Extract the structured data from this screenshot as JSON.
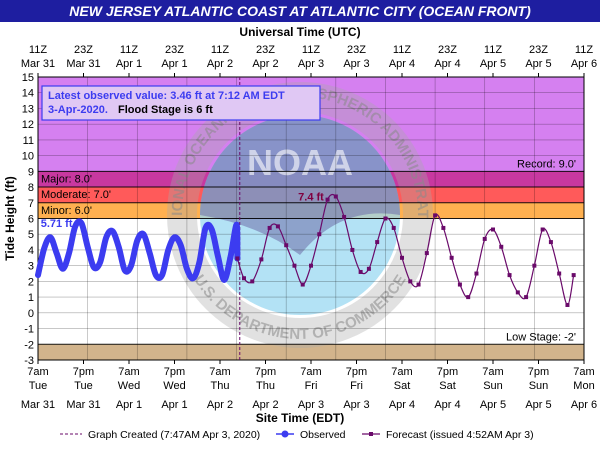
{
  "chart_data": {
    "type": "line",
    "title": "NEW JERSEY ATLANTIC COAST AT ATLANTIC CITY (OCEAN FRONT)",
    "top_axis_title": "Universal Time (UTC)",
    "bottom_axis_title": "Site Time (EDT)",
    "ylabel": "Tide Height (ft)",
    "ylim": [
      -3,
      15
    ],
    "x_range_hours": [
      0,
      132
    ],
    "top_ticks": [
      [
        "11Z",
        "Mar 31"
      ],
      [
        "23Z",
        "Mar 31"
      ],
      [
        "11Z",
        "Apr 1"
      ],
      [
        "23Z",
        "Apr 1"
      ],
      [
        "11Z",
        "Apr 2"
      ],
      [
        "23Z",
        "Apr 2"
      ],
      [
        "11Z",
        "Apr 3"
      ],
      [
        "23Z",
        "Apr 3"
      ],
      [
        "11Z",
        "Apr 4"
      ],
      [
        "23Z",
        "Apr 4"
      ],
      [
        "11Z",
        "Apr 5"
      ],
      [
        "23Z",
        "Apr 5"
      ],
      [
        "11Z",
        "Apr 6"
      ]
    ],
    "bottom_ticks": [
      [
        "7am",
        "Tue",
        "Mar 31"
      ],
      [
        "7pm",
        "Tue",
        "Mar 31"
      ],
      [
        "7am",
        "Wed",
        "Apr 1"
      ],
      [
        "7pm",
        "Wed",
        "Apr 1"
      ],
      [
        "7am",
        "Thu",
        "Apr 2"
      ],
      [
        "7pm",
        "Thu",
        "Apr 2"
      ],
      [
        "7am",
        "Fri",
        "Apr 3"
      ],
      [
        "7pm",
        "Fri",
        "Apr 3"
      ],
      [
        "7am",
        "Sat",
        "Apr 4"
      ],
      [
        "7pm",
        "Sat",
        "Apr 4"
      ],
      [
        "7am",
        "Sun",
        "Apr 5"
      ],
      [
        "7pm",
        "Sun",
        "Apr 5"
      ],
      [
        "7am",
        "Mon",
        "Apr 6"
      ]
    ],
    "stages": [
      {
        "name": "Record",
        "label": "Record: 9.0'",
        "from": 9.0,
        "to": 15,
        "color": "#d580f0"
      },
      {
        "name": "Major",
        "label": "Major: 8.0'",
        "from": 8.0,
        "to": 9.0,
        "color": "#c838a0"
      },
      {
        "name": "Moderate",
        "label": "Moderate: 7.0'",
        "from": 7.0,
        "to": 8.0,
        "color": "#ff5a5a"
      },
      {
        "name": "Minor",
        "label": "Minor: 6.0'",
        "from": 6.0,
        "to": 7.0,
        "color": "#ffb050"
      },
      {
        "name": "Low Stage",
        "label": "Low Stage: -2'",
        "from": -3,
        "to": -2,
        "color": "#d2b48c"
      }
    ],
    "latest_observed": {
      "line1": "Latest observed value: 3.46 ft at 7:12 AM EDT",
      "line2_date": "3-Apr-2020.",
      "line2_flood": "Flood Stage is 6 ft"
    },
    "graph_created_hours": 48.78,
    "annotations": [
      {
        "text": "5.71 ft",
        "x": 4.5,
        "y": 5.71,
        "color": "#3c3cf0"
      },
      {
        "text": "7.4 ft",
        "x": 66,
        "y": 7.4,
        "color": "#800040"
      }
    ],
    "watermark": {
      "ring_text_top": "NATIONAL OCEANIC AND ATMOSPHERIC ADMINISTRATION",
      "ring_text_bottom": "U.S. DEPARTMENT OF COMMERCE",
      "center": "NOAA"
    },
    "series": [
      {
        "name": "Observed",
        "color": "#3c3cf0",
        "x": [
          0,
          1.5,
          3,
          4.5,
          6,
          7.5,
          9,
          10.5,
          12,
          13.5,
          15,
          16.5,
          18,
          19.5,
          21,
          22.5,
          24,
          25.5,
          27,
          28.5,
          30,
          31.5,
          33,
          34.5,
          36,
          37.5,
          39,
          40.5,
          42,
          43.5,
          45,
          46.5,
          48,
          48.2
        ],
        "y": [
          2.4,
          4.1,
          4.8,
          3.8,
          2.8,
          3.8,
          5.5,
          5.7,
          4.2,
          2.9,
          3.2,
          4.8,
          5.2,
          4.2,
          2.7,
          3.0,
          4.6,
          5.0,
          3.8,
          2.4,
          2.4,
          4.0,
          4.8,
          4.3,
          2.8,
          2.2,
          3.2,
          5.4,
          5.3,
          3.6,
          2.1,
          3.5,
          5.6,
          3.46
        ]
      },
      {
        "name": "Forecast (issued 4:52AM Apr 3)",
        "color": "#6a0a6a",
        "x": [
          48.2,
          49.8,
          51.8,
          54,
          56,
          58,
          60,
          62,
          64,
          66,
          68,
          70,
          72,
          74,
          76,
          78,
          80,
          82,
          84,
          86,
          88,
          90,
          92,
          94,
          96,
          98,
          100,
          102,
          104,
          106,
          108,
          110,
          112,
          114,
          116,
          118,
          120,
          122,
          124,
          126,
          128,
          129.5
        ],
        "y": [
          3.46,
          2.2,
          2.0,
          3.4,
          5.4,
          5.5,
          4.3,
          3.0,
          1.8,
          3.0,
          5.0,
          7.2,
          7.4,
          6.1,
          4.0,
          2.6,
          2.8,
          4.5,
          6.0,
          5.4,
          3.5,
          2.0,
          1.8,
          3.8,
          6.2,
          5.4,
          3.5,
          1.8,
          1.0,
          2.5,
          4.7,
          5.3,
          4.2,
          2.4,
          1.3,
          1.0,
          3.0,
          5.3,
          4.5,
          2.5,
          0.5,
          2.4
        ]
      }
    ],
    "legend": {
      "graph_created": "Graph Created (7:47AM Apr 3, 2020)",
      "observed": "Observed",
      "forecast": "Forecast (issued 4:52AM Apr 3)"
    }
  }
}
